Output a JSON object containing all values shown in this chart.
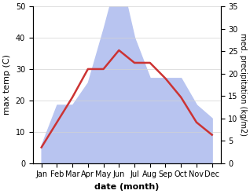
{
  "months": [
    "Jan",
    "Feb",
    "Mar",
    "Apr",
    "May",
    "Jun",
    "Jul",
    "Aug",
    "Sep",
    "Oct",
    "Nov",
    "Dec"
  ],
  "max_temp": [
    5,
    13,
    21,
    30,
    30,
    36,
    32,
    32,
    27,
    21,
    13,
    9
  ],
  "precipitation": [
    4,
    13,
    13,
    18,
    30,
    43,
    28,
    19,
    19,
    19,
    13,
    10
  ],
  "temp_color": "#cc3333",
  "precip_color": "#b8c4f0",
  "left_ylim": [
    0,
    50
  ],
  "right_ylim": [
    0,
    35
  ],
  "left_yticks": [
    0,
    10,
    20,
    30,
    40,
    50
  ],
  "right_yticks": [
    0,
    5,
    10,
    15,
    20,
    25,
    30,
    35
  ],
  "xlabel": "date (month)",
  "ylabel_left": "max temp (C)",
  "ylabel_right": "med. precipitation (kg/m2)",
  "figsize": [
    3.18,
    2.47
  ],
  "dpi": 100
}
